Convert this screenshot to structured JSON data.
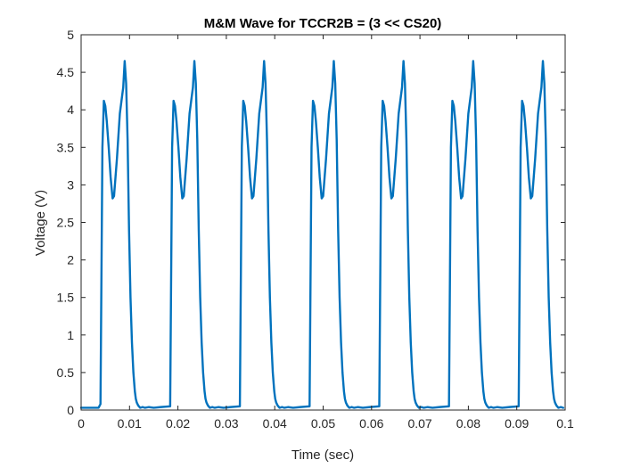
{
  "chart_data": {
    "type": "line",
    "title": "M&M Wave for TCCR2B = (3 << CS20)",
    "xlabel": "Time (sec)",
    "ylabel": "Voltage (V)",
    "xlim": [
      0,
      0.1
    ],
    "ylim": [
      0,
      5
    ],
    "xticks": [
      "0",
      "0.01",
      "0.02",
      "0.03",
      "0.04",
      "0.05",
      "0.06",
      "0.07",
      "0.08",
      "0.09",
      "0.1"
    ],
    "yticks": [
      "0",
      "0.5",
      "1",
      "1.5",
      "2",
      "2.5",
      "3",
      "3.5",
      "4",
      "4.5",
      "5"
    ],
    "grid": false,
    "box": true,
    "period_sec": 0.0144,
    "first_rise_sec": 0.004,
    "pulse_shape": {
      "t_offset_sec": [
        0.0,
        0.0004,
        0.0007,
        0.001,
        0.0013,
        0.0017,
        0.0021,
        0.0025,
        0.0028,
        0.0031,
        0.0034,
        0.0037,
        0.004,
        0.0044,
        0.0047,
        0.005,
        0.0053,
        0.0056,
        0.0059,
        0.0062,
        0.0065,
        0.0068,
        0.0071,
        0.0073,
        0.0075,
        0.0078,
        0.0082,
        0.0087,
        0.0092,
        0.01,
        0.011,
        0.0125,
        0.0144
      ],
      "voltage": [
        0.08,
        3.5,
        4.12,
        4.05,
        3.85,
        3.5,
        3.1,
        2.82,
        2.85,
        3.1,
        3.35,
        3.65,
        3.95,
        4.15,
        4.3,
        4.65,
        4.35,
        3.6,
        2.4,
        1.5,
        0.9,
        0.5,
        0.25,
        0.15,
        0.1,
        0.06,
        0.03,
        0.04,
        0.03,
        0.04,
        0.03,
        0.04,
        0.05
      ]
    },
    "series": [
      {
        "color": "#0072BD"
      }
    ]
  }
}
